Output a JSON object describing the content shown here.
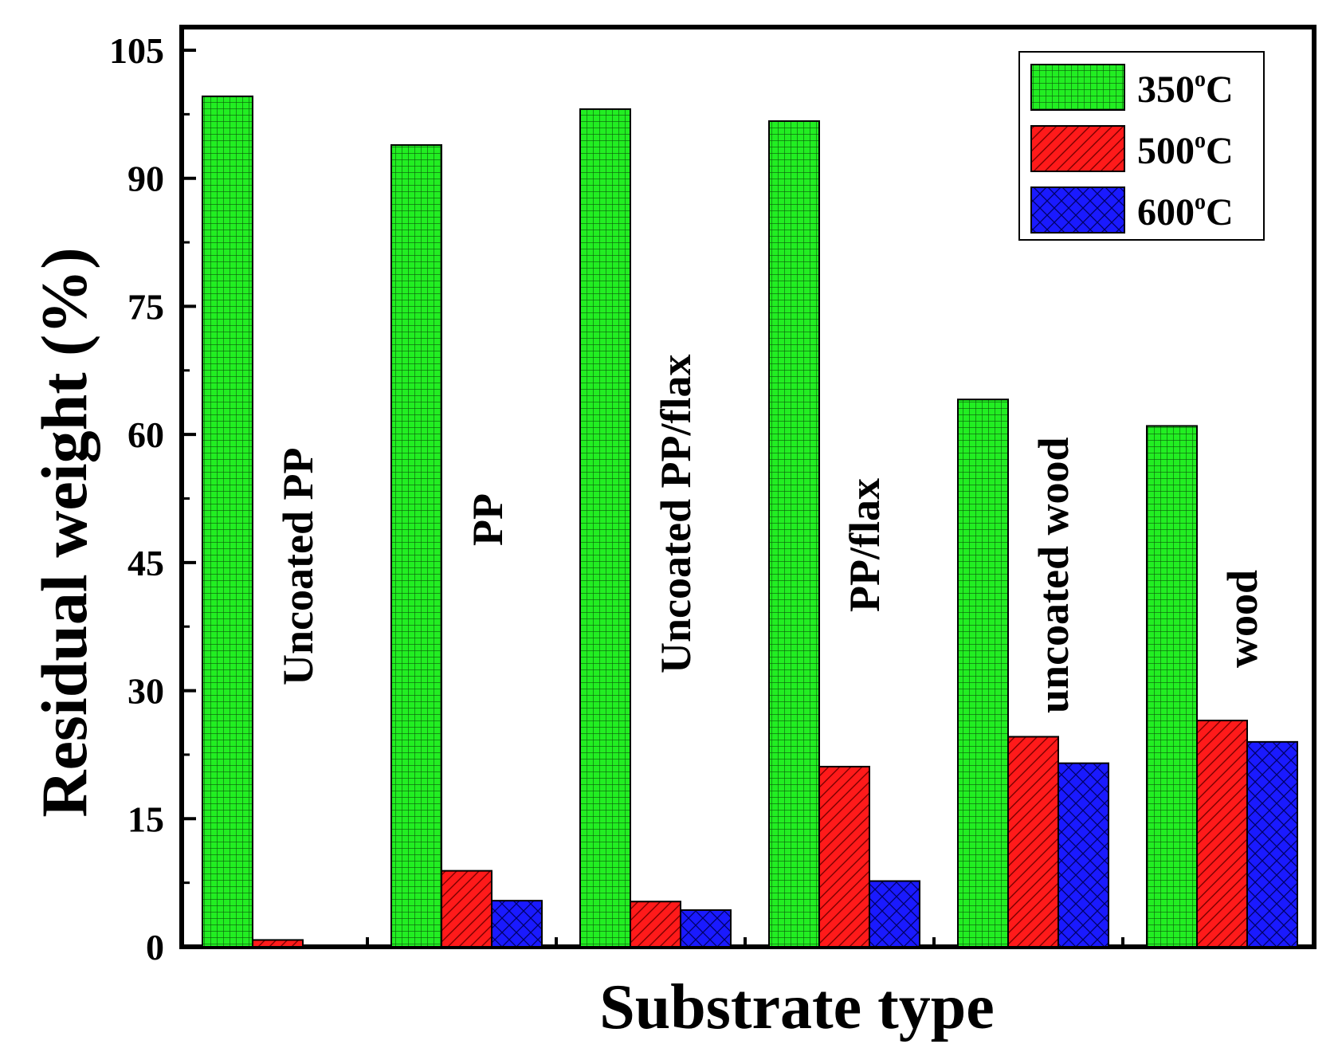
{
  "chart_data": {
    "type": "bar",
    "title": "",
    "xlabel": "Substrate type",
    "ylabel": "Residual weight (%)",
    "ylim": [
      0,
      105
    ],
    "yticks": [
      "0",
      "15",
      "30",
      "45",
      "60",
      "75",
      "90",
      "105"
    ],
    "ytick_values": [
      0,
      15,
      30,
      45,
      60,
      75,
      90,
      105
    ],
    "grid": false,
    "legend_position": "top-right",
    "categories": [
      "Uncoated PP",
      "PP",
      "Uncoated PP/flax",
      "PP/flax",
      "uncoated wood",
      "wood"
    ],
    "series": [
      {
        "name": "350",
        "unit": "o",
        "suffix": "C",
        "color": "#22ee22",
        "pattern": "grid",
        "values": [
          99.6,
          93.9,
          98.1,
          96.7,
          64.1,
          61.0
        ]
      },
      {
        "name": "500",
        "unit": "o",
        "suffix": "C",
        "color": "#ff1a1a",
        "pattern": "hatch",
        "values": [
          0.8,
          8.9,
          5.3,
          21.1,
          24.6,
          26.5
        ]
      },
      {
        "name": "600",
        "unit": "o",
        "suffix": "C",
        "color": "#1a1aff",
        "pattern": "cross",
        "values": [
          0,
          5.4,
          4.3,
          7.7,
          21.5,
          24.0
        ]
      }
    ]
  }
}
